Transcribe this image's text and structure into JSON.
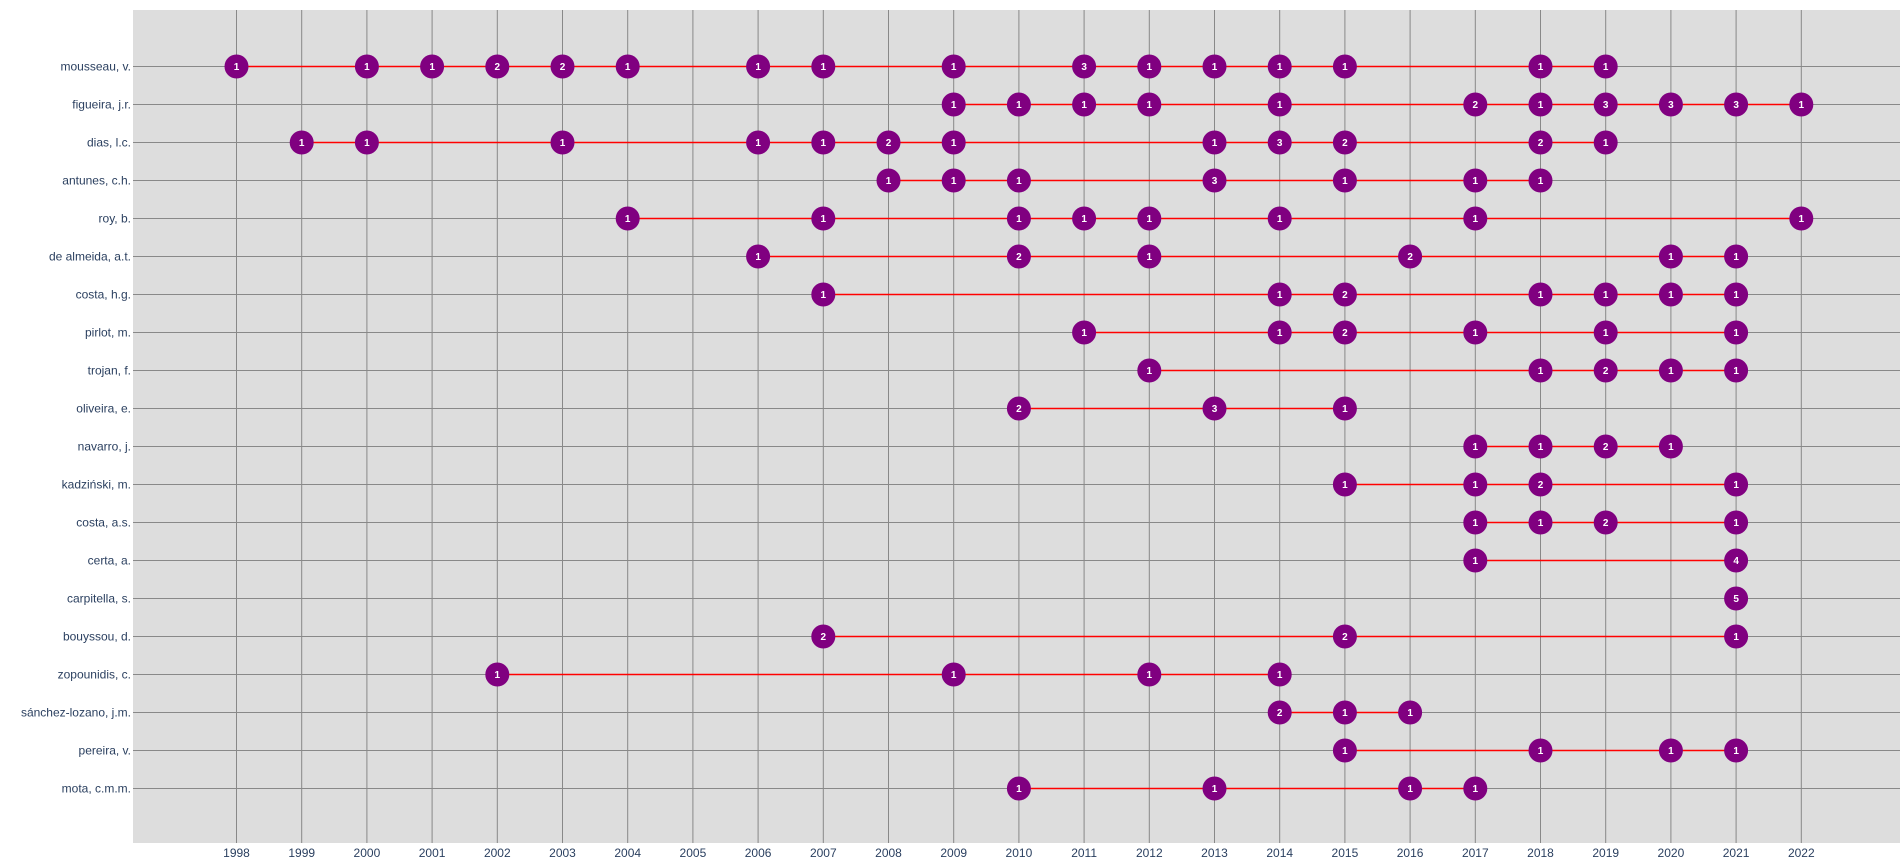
{
  "chart_data": {
    "type": "scatter",
    "x_ticks": [
      1998,
      1999,
      2000,
      2001,
      2002,
      2003,
      2004,
      2005,
      2006,
      2007,
      2008,
      2009,
      2010,
      2011,
      2012,
      2013,
      2014,
      2015,
      2016,
      2017,
      2018,
      2019,
      2020,
      2021,
      2022
    ],
    "grid": true,
    "colors": {
      "plot_bg": "#dddddd",
      "grid": "#888888",
      "line": "#ff0000",
      "marker": "#800080",
      "marker_text": "#ffffff",
      "tick_text": "#2a3f5f"
    },
    "series": [
      {
        "name": "mousseau, v.",
        "points": [
          [
            1998,
            1
          ],
          [
            2000,
            1
          ],
          [
            2001,
            1
          ],
          [
            2002,
            2
          ],
          [
            2003,
            2
          ],
          [
            2004,
            1
          ],
          [
            2006,
            1
          ],
          [
            2007,
            1
          ],
          [
            2009,
            1
          ],
          [
            2011,
            3
          ],
          [
            2012,
            1
          ],
          [
            2013,
            1
          ],
          [
            2014,
            1
          ],
          [
            2015,
            1
          ],
          [
            2018,
            1
          ],
          [
            2019,
            1
          ]
        ]
      },
      {
        "name": "figueira, j.r.",
        "points": [
          [
            2009,
            1
          ],
          [
            2010,
            1
          ],
          [
            2011,
            1
          ],
          [
            2012,
            1
          ],
          [
            2014,
            1
          ],
          [
            2017,
            2
          ],
          [
            2018,
            1
          ],
          [
            2019,
            3
          ],
          [
            2020,
            3
          ],
          [
            2021,
            3
          ],
          [
            2022,
            1
          ]
        ]
      },
      {
        "name": "dias, l.c.",
        "points": [
          [
            1999,
            1
          ],
          [
            2000,
            1
          ],
          [
            2003,
            1
          ],
          [
            2006,
            1
          ],
          [
            2007,
            1
          ],
          [
            2008,
            2
          ],
          [
            2009,
            1
          ],
          [
            2013,
            1
          ],
          [
            2014,
            3
          ],
          [
            2015,
            2
          ],
          [
            2018,
            2
          ],
          [
            2019,
            1
          ]
        ]
      },
      {
        "name": "antunes, c.h.",
        "points": [
          [
            2008,
            1
          ],
          [
            2009,
            1
          ],
          [
            2010,
            1
          ],
          [
            2013,
            3
          ],
          [
            2015,
            1
          ],
          [
            2017,
            1
          ],
          [
            2018,
            1
          ]
        ]
      },
      {
        "name": "roy, b.",
        "points": [
          [
            2004,
            1
          ],
          [
            2007,
            1
          ],
          [
            2010,
            1
          ],
          [
            2011,
            1
          ],
          [
            2012,
            1
          ],
          [
            2014,
            1
          ],
          [
            2017,
            1
          ],
          [
            2022,
            1
          ]
        ]
      },
      {
        "name": "de almeida, a.t.",
        "points": [
          [
            2006,
            1
          ],
          [
            2010,
            2
          ],
          [
            2012,
            1
          ],
          [
            2016,
            2
          ],
          [
            2020,
            1
          ],
          [
            2021,
            1
          ]
        ]
      },
      {
        "name": "costa, h.g.",
        "points": [
          [
            2007,
            1
          ],
          [
            2014,
            1
          ],
          [
            2015,
            2
          ],
          [
            2018,
            1
          ],
          [
            2019,
            1
          ],
          [
            2020,
            1
          ],
          [
            2021,
            1
          ]
        ]
      },
      {
        "name": "pirlot, m.",
        "points": [
          [
            2011,
            1
          ],
          [
            2014,
            1
          ],
          [
            2015,
            2
          ],
          [
            2017,
            1
          ],
          [
            2019,
            1
          ],
          [
            2021,
            1
          ]
        ]
      },
      {
        "name": "trojan, f.",
        "points": [
          [
            2012,
            1
          ],
          [
            2018,
            1
          ],
          [
            2019,
            2
          ],
          [
            2020,
            1
          ],
          [
            2021,
            1
          ]
        ]
      },
      {
        "name": "oliveira, e.",
        "points": [
          [
            2010,
            2
          ],
          [
            2013,
            3
          ],
          [
            2015,
            1
          ]
        ]
      },
      {
        "name": "navarro, j.",
        "points": [
          [
            2017,
            1
          ],
          [
            2018,
            1
          ],
          [
            2019,
            2
          ],
          [
            2020,
            1
          ]
        ]
      },
      {
        "name": "kadziński, m.",
        "points": [
          [
            2015,
            1
          ],
          [
            2017,
            1
          ],
          [
            2018,
            2
          ],
          [
            2021,
            1
          ]
        ]
      },
      {
        "name": "costa, a.s.",
        "points": [
          [
            2017,
            1
          ],
          [
            2018,
            1
          ],
          [
            2019,
            2
          ],
          [
            2021,
            1
          ]
        ]
      },
      {
        "name": "certa, a.",
        "points": [
          [
            2017,
            1
          ],
          [
            2021,
            4
          ]
        ]
      },
      {
        "name": "carpitella, s.",
        "points": [
          [
            2021,
            5
          ]
        ]
      },
      {
        "name": "bouyssou, d.",
        "points": [
          [
            2007,
            2
          ],
          [
            2015,
            2
          ],
          [
            2021,
            1
          ]
        ]
      },
      {
        "name": "zopounidis, c.",
        "points": [
          [
            2002,
            1
          ],
          [
            2009,
            1
          ],
          [
            2012,
            1
          ],
          [
            2014,
            1
          ]
        ]
      },
      {
        "name": "sánchez-lozano, j.m.",
        "points": [
          [
            2014,
            2
          ],
          [
            2015,
            1
          ],
          [
            2016,
            1
          ]
        ]
      },
      {
        "name": "pereira, v.",
        "points": [
          [
            2015,
            1
          ],
          [
            2018,
            1
          ],
          [
            2020,
            1
          ],
          [
            2021,
            1
          ]
        ]
      },
      {
        "name": "mota, c.m.m.",
        "points": [
          [
            2010,
            1
          ],
          [
            2013,
            1
          ],
          [
            2016,
            1
          ],
          [
            2017,
            1
          ]
        ]
      }
    ]
  }
}
